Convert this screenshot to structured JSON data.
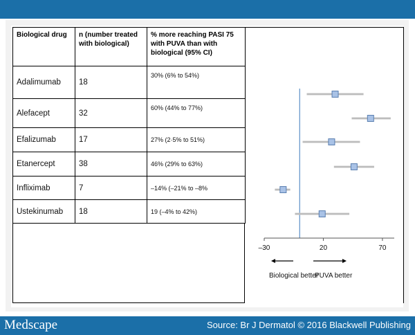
{
  "table": {
    "headers": {
      "drug": "Biological drug",
      "n": "n (number treated with biological)",
      "percent": "% more reaching PASI 75 with PUVA than with biological (95% CI)"
    },
    "rows": [
      {
        "drug": "Adalimumab",
        "n": "18",
        "ci": "30% (6% to 54%)"
      },
      {
        "drug": "Alefacept",
        "n": "32",
        "ci": "60% (44% to 77%)"
      },
      {
        "drug": "Efalizumab",
        "n": "17",
        "ci": "27% (2·5% to 51%)"
      },
      {
        "drug": "Etanercept",
        "n": "38",
        "ci": "46% (29% to 63%)"
      },
      {
        "drug": "Infliximab",
        "n": "7",
        "ci": "–14% (–21% to –8%"
      },
      {
        "drug": "Ustekinumab",
        "n": "18",
        "ci": "19 (–4% to 42%)"
      }
    ]
  },
  "chart_data": {
    "type": "scatter",
    "categories": [
      "Adalimumab",
      "Alefacept",
      "Efalizumab",
      "Etanercept",
      "Infliximab",
      "Ustekinumab"
    ],
    "x": [
      30,
      60,
      27,
      46,
      -14,
      19
    ],
    "ci_low": [
      6,
      44,
      2.5,
      29,
      -21,
      -4
    ],
    "ci_high": [
      54,
      77,
      51,
      63,
      -8,
      42
    ],
    "xlim": [
      -30,
      80
    ],
    "reference_line": 0,
    "tick_labels": [
      "–30",
      "20",
      "70"
    ],
    "tick_values": [
      -30,
      20,
      70
    ],
    "left_label": "Biological better",
    "right_label": "PUVA better",
    "marker_color": "#a9c2e6",
    "ci_color": "#c8c8c8",
    "line_color": "#5b8fc7"
  },
  "footer": {
    "logo": "Medscape",
    "source": "Source: Br J Dermatol © 2016 Blackwell Publishing"
  }
}
